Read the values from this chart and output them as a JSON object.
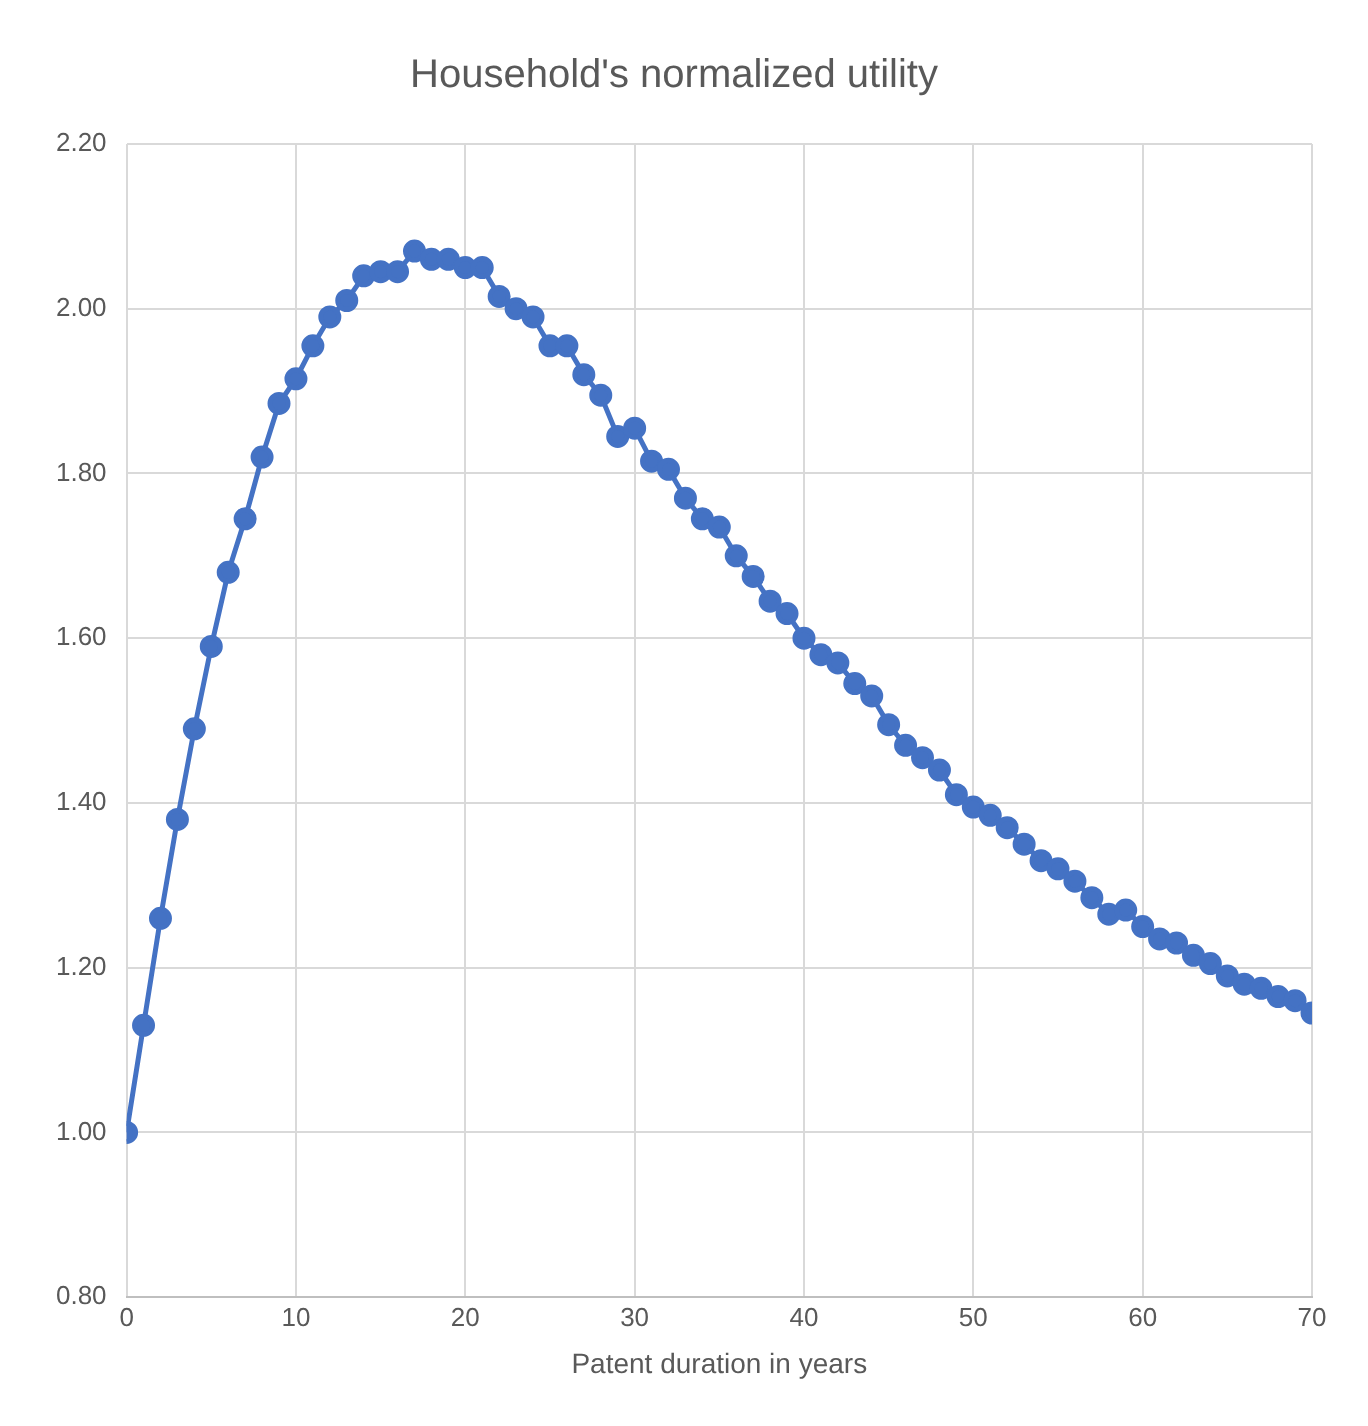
{
  "chart_data": {
    "type": "line",
    "title": "Household's normalized utility",
    "xlabel": "Patent duration in years",
    "x": [
      0,
      1,
      2,
      3,
      4,
      5,
      6,
      7,
      8,
      9,
      10,
      11,
      12,
      13,
      14,
      15,
      16,
      17,
      18,
      19,
      20,
      21,
      22,
      23,
      24,
      25,
      26,
      27,
      28,
      29,
      30,
      31,
      32,
      33,
      34,
      35,
      36,
      37,
      38,
      39,
      40,
      41,
      42,
      43,
      44,
      45,
      46,
      47,
      48,
      49,
      50,
      51,
      52,
      53,
      54,
      55,
      56,
      57,
      58,
      59,
      60,
      61,
      62,
      63,
      64,
      65,
      66,
      67,
      68,
      69,
      70
    ],
    "series": [
      {
        "color": "#4472c4",
        "values": [
          1.0,
          1.13,
          1.26,
          1.38,
          1.49,
          1.59,
          1.68,
          1.745,
          1.82,
          1.885,
          1.915,
          1.955,
          1.99,
          2.01,
          2.04,
          2.045,
          2.045,
          2.07,
          2.06,
          2.06,
          2.05,
          2.05,
          2.015,
          2.0,
          1.99,
          1.955,
          1.955,
          1.92,
          1.895,
          1.845,
          1.855,
          1.815,
          1.805,
          1.77,
          1.745,
          1.735,
          1.7,
          1.675,
          1.645,
          1.63,
          1.6,
          1.58,
          1.57,
          1.545,
          1.53,
          1.495,
          1.47,
          1.455,
          1.44,
          1.41,
          1.395,
          1.385,
          1.37,
          1.35,
          1.33,
          1.32,
          1.305,
          1.285,
          1.265,
          1.27,
          1.25,
          1.235,
          1.23,
          1.215,
          1.205,
          1.19,
          1.18,
          1.175,
          1.165,
          1.16,
          1.145
        ]
      }
    ],
    "xlim": [
      0,
      70
    ],
    "xticks": [
      0,
      10,
      20,
      30,
      40,
      50,
      60,
      70
    ],
    "ylim": [
      0.8,
      2.2
    ],
    "yticks": [
      {
        "value": 0.8,
        "label": "0.80"
      },
      {
        "value": 1.0,
        "label": "1.00"
      },
      {
        "value": 1.2,
        "label": "1.20"
      },
      {
        "value": 1.4,
        "label": "1.40"
      },
      {
        "value": 1.6,
        "label": "1.60"
      },
      {
        "value": 1.8,
        "label": "1.80"
      },
      {
        "value": 2.0,
        "label": "2.00"
      },
      {
        "value": 2.2,
        "label": "2.20"
      }
    ],
    "grid": true,
    "legend": false,
    "marker": "circle",
    "line_style": "solid"
  }
}
